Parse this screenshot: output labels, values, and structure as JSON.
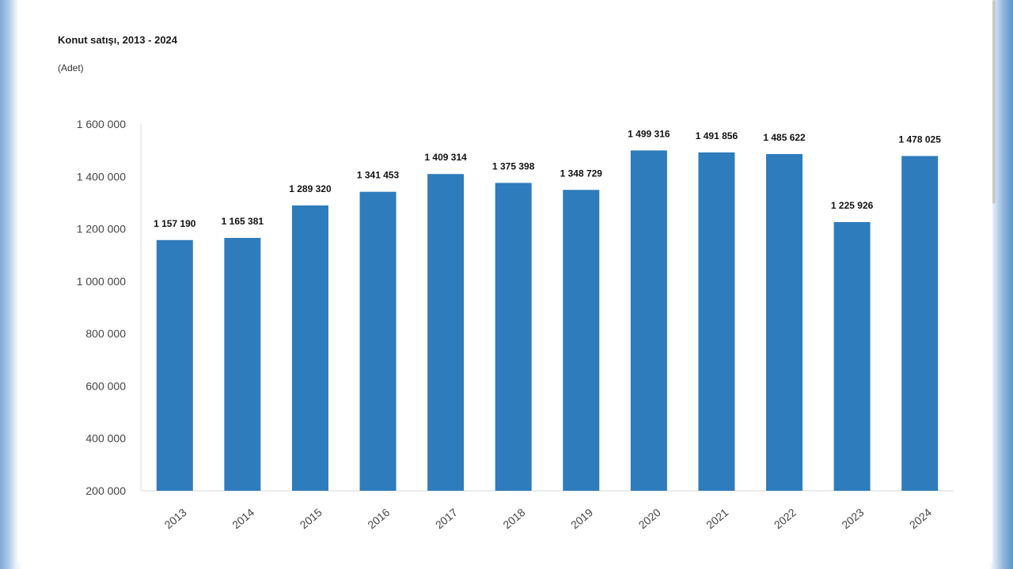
{
  "chart_data": {
    "type": "bar",
    "title": "Konut satışı, 2013 - 2024",
    "unit": "(Adet)",
    "xlabel": "",
    "ylabel": "",
    "ylim": [
      200000,
      1600000
    ],
    "y_ticks": [
      200000,
      400000,
      600000,
      800000,
      1000000,
      1200000,
      1400000,
      1600000
    ],
    "y_tick_labels": [
      "200 000",
      "400 000",
      "600 000",
      "800 000",
      "1 000 000",
      "1 200 000",
      "1 400 000",
      "1 600 000"
    ],
    "grid": false,
    "legend": "none",
    "bar_color": "#2e7cbc",
    "categories": [
      "2013",
      "2014",
      "2015",
      "2016",
      "2017",
      "2018",
      "2019",
      "2020",
      "2021",
      "2022",
      "2023",
      "2024"
    ],
    "values": [
      1157190,
      1165381,
      1289320,
      1341453,
      1409314,
      1375398,
      1348729,
      1499316,
      1491856,
      1485622,
      1225926,
      1478025
    ],
    "value_labels": [
      "1 157 190",
      "1 165 381",
      "1 289 320",
      "1 341 453",
      "1 409 314",
      "1 375 398",
      "1 348 729",
      "1 499 316",
      "1 491 856",
      "1 485 622",
      "1 225 926",
      "1 478 025"
    ]
  }
}
